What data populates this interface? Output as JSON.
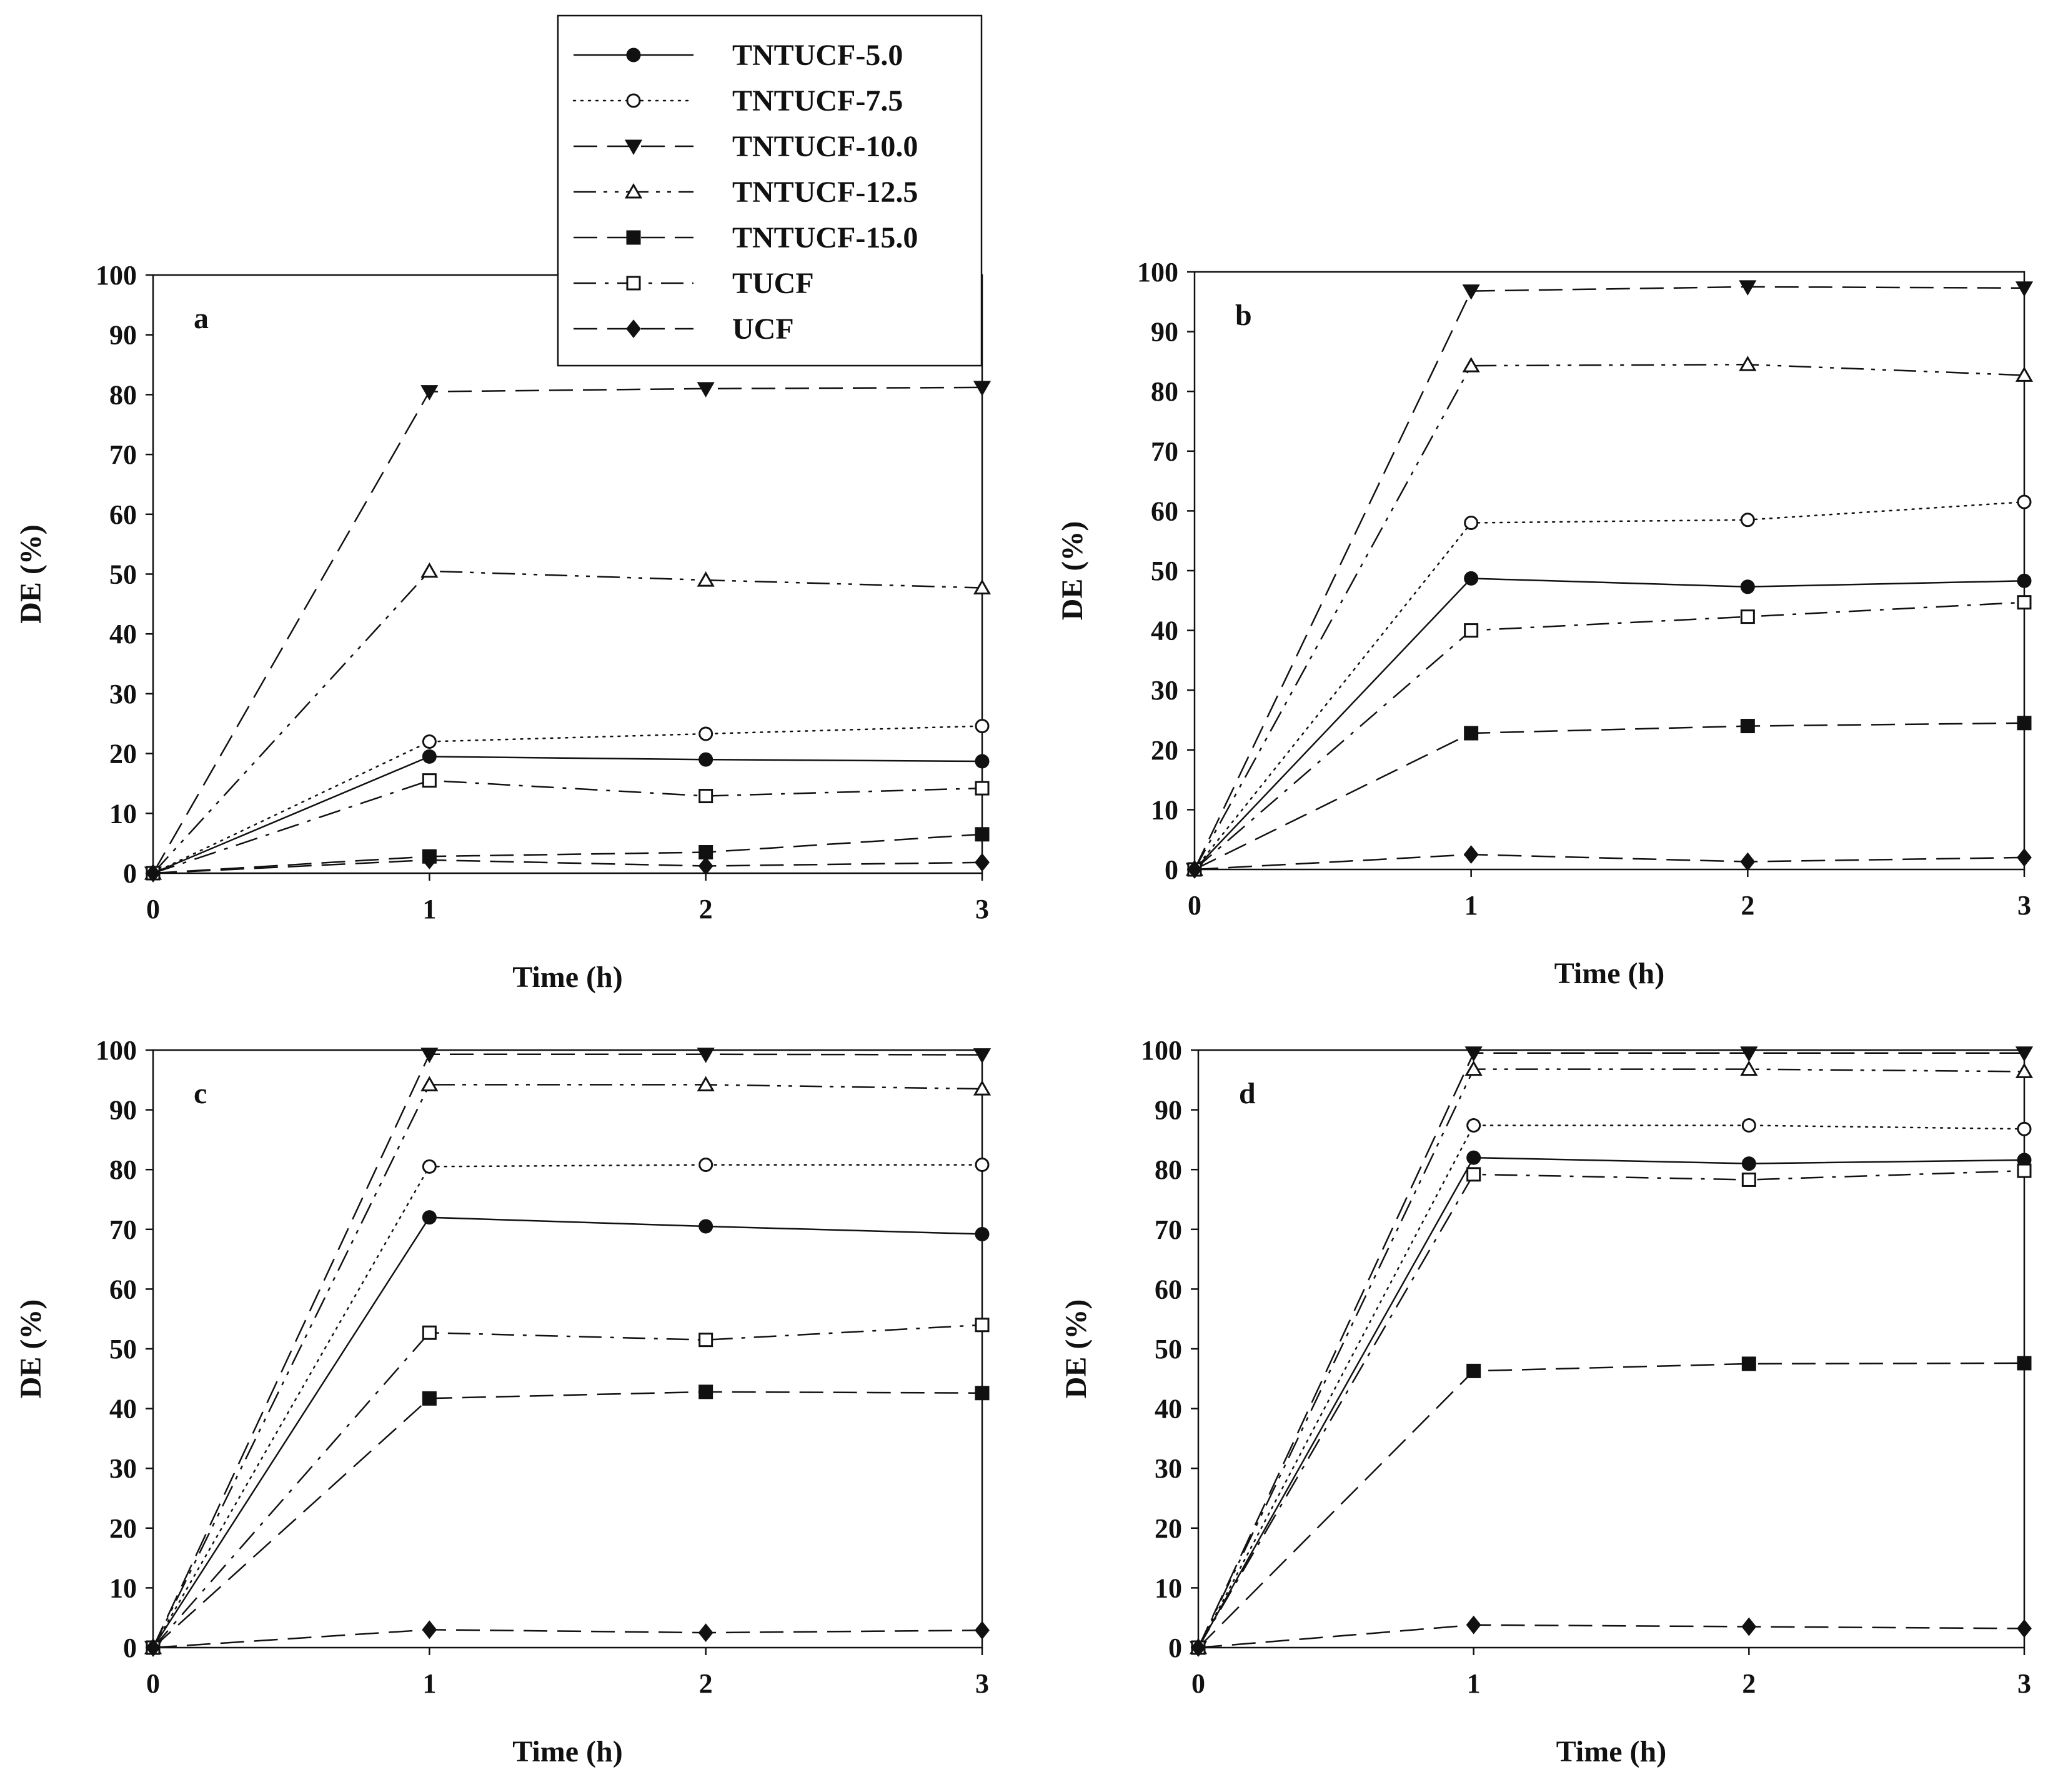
{
  "chart_data": [
    {
      "type": "line",
      "panel_label": "a",
      "xlabel": "Time (h)",
      "ylabel": "DE (%)",
      "xlim": [
        0,
        3
      ],
      "ylim": [
        0,
        100
      ],
      "x": [
        0,
        1,
        2,
        3
      ],
      "xticks": [
        0,
        1,
        2,
        3
      ],
      "yticks": [
        0,
        10,
        20,
        30,
        40,
        50,
        60,
        70,
        80,
        90,
        100
      ],
      "grid": false,
      "legend_position": "top-center",
      "series": [
        {
          "name": "TNTUCF-5.0",
          "values": [
            0,
            19.5,
            19,
            18.7
          ]
        },
        {
          "name": "TNTUCF-7.5",
          "values": [
            0,
            22,
            23.3,
            24.6
          ]
        },
        {
          "name": "TNTUCF-10.0",
          "values": [
            0,
            80.5,
            81,
            81.2
          ]
        },
        {
          "name": "TNTUCF-12.5",
          "values": [
            0,
            50.5,
            49,
            47.7
          ]
        },
        {
          "name": "TNTUCF-15.0",
          "values": [
            0,
            2.8,
            3.5,
            6.5
          ]
        },
        {
          "name": "TUCF",
          "values": [
            0,
            15.5,
            12.9,
            14.2
          ]
        },
        {
          "name": "UCF",
          "values": [
            0,
            2.2,
            1.2,
            1.8
          ]
        }
      ]
    },
    {
      "type": "line",
      "panel_label": "b",
      "xlabel": "Time (h)",
      "ylabel": "DE (%)",
      "xlim": [
        0,
        3
      ],
      "ylim": [
        0,
        100
      ],
      "x": [
        0,
        1,
        2,
        3
      ],
      "xticks": [
        0,
        1,
        2,
        3
      ],
      "yticks": [
        0,
        10,
        20,
        30,
        40,
        50,
        60,
        70,
        80,
        90,
        100
      ],
      "grid": false,
      "series": [
        {
          "name": "TNTUCF-5.0",
          "values": [
            0,
            48.7,
            47.3,
            48.3
          ]
        },
        {
          "name": "TNTUCF-7.5",
          "values": [
            0,
            58,
            58.5,
            61.5
          ]
        },
        {
          "name": "TNTUCF-10.0",
          "values": [
            0,
            96.8,
            97.5,
            97.3
          ]
        },
        {
          "name": "TNTUCF-12.5",
          "values": [
            0,
            84.3,
            84.5,
            82.7
          ]
        },
        {
          "name": "TNTUCF-15.0",
          "values": [
            0,
            22.8,
            24,
            24.5
          ]
        },
        {
          "name": "TUCF",
          "values": [
            0,
            40,
            42.3,
            44.7
          ]
        },
        {
          "name": "UCF",
          "values": [
            0,
            2.5,
            1.3,
            2
          ]
        }
      ]
    },
    {
      "type": "line",
      "panel_label": "c",
      "xlabel": "Time (h)",
      "ylabel": "DE (%)",
      "xlim": [
        0,
        3
      ],
      "ylim": [
        0,
        100
      ],
      "x": [
        0,
        1,
        2,
        3
      ],
      "xticks": [
        0,
        1,
        2,
        3
      ],
      "yticks": [
        0,
        10,
        20,
        30,
        40,
        50,
        60,
        70,
        80,
        90,
        100
      ],
      "grid": false,
      "series": [
        {
          "name": "TNTUCF-5.0",
          "values": [
            0,
            72,
            70.5,
            69.2
          ]
        },
        {
          "name": "TNTUCF-7.5",
          "values": [
            0,
            80.5,
            80.8,
            80.8
          ]
        },
        {
          "name": "TNTUCF-10.0",
          "values": [
            0,
            99.3,
            99.3,
            99.2
          ]
        },
        {
          "name": "TNTUCF-12.5",
          "values": [
            0,
            94.2,
            94.2,
            93.5
          ]
        },
        {
          "name": "TNTUCF-15.0",
          "values": [
            0,
            41.7,
            42.8,
            42.6
          ]
        },
        {
          "name": "TUCF",
          "values": [
            0,
            52.7,
            51.5,
            54
          ]
        },
        {
          "name": "UCF",
          "values": [
            0,
            3,
            2.5,
            2.9
          ]
        }
      ]
    },
    {
      "type": "line",
      "panel_label": "d",
      "xlabel": "Time (h)",
      "ylabel": "DE (%)",
      "xlim": [
        0,
        3
      ],
      "ylim": [
        0,
        100
      ],
      "x": [
        0,
        1,
        2,
        3
      ],
      "xticks": [
        0,
        1,
        2,
        3
      ],
      "yticks": [
        0,
        10,
        20,
        30,
        40,
        50,
        60,
        70,
        80,
        90,
        100
      ],
      "grid": false,
      "series": [
        {
          "name": "TNTUCF-5.0",
          "values": [
            0,
            82,
            81,
            81.6
          ]
        },
        {
          "name": "TNTUCF-7.5",
          "values": [
            0,
            87.4,
            87.4,
            86.8
          ]
        },
        {
          "name": "TNTUCF-10.0",
          "values": [
            0,
            99.5,
            99.5,
            99.5
          ]
        },
        {
          "name": "TNTUCF-12.5",
          "values": [
            0,
            96.8,
            96.8,
            96.4
          ]
        },
        {
          "name": "TNTUCF-15.0",
          "values": [
            0,
            46.3,
            47.5,
            47.6
          ]
        },
        {
          "name": "TUCF",
          "values": [
            0,
            79.2,
            78.3,
            79.8
          ]
        },
        {
          "name": "UCF",
          "values": [
            0,
            3.8,
            3.5,
            3.2
          ]
        }
      ]
    }
  ],
  "legend": {
    "entries": [
      "TNTUCF-5.0",
      "TNTUCF-7.5",
      "TNTUCF-10.0",
      "TNTUCF-12.5",
      "TNTUCF-15.0",
      "TUCF",
      "UCF"
    ]
  },
  "series_styles": {
    "TNTUCF-5.0": {
      "marker": "filled-circle-icon",
      "line": "solid"
    },
    "TNTUCF-7.5": {
      "marker": "open-circle-icon",
      "line": "dotted"
    },
    "TNTUCF-10.0": {
      "marker": "filled-triangle-down-icon",
      "line": "long-dash"
    },
    "TNTUCF-12.5": {
      "marker": "open-triangle-up-icon",
      "line": "dash-dot-dot"
    },
    "TNTUCF-15.0": {
      "marker": "filled-square-icon",
      "line": "long-dash"
    },
    "TUCF": {
      "marker": "open-square-icon",
      "line": "dash-dot"
    },
    "UCF": {
      "marker": "filled-diamond-icon",
      "line": "long-dash"
    }
  },
  "colors": {
    "ink": "#111111",
    "background": "#ffffff"
  }
}
